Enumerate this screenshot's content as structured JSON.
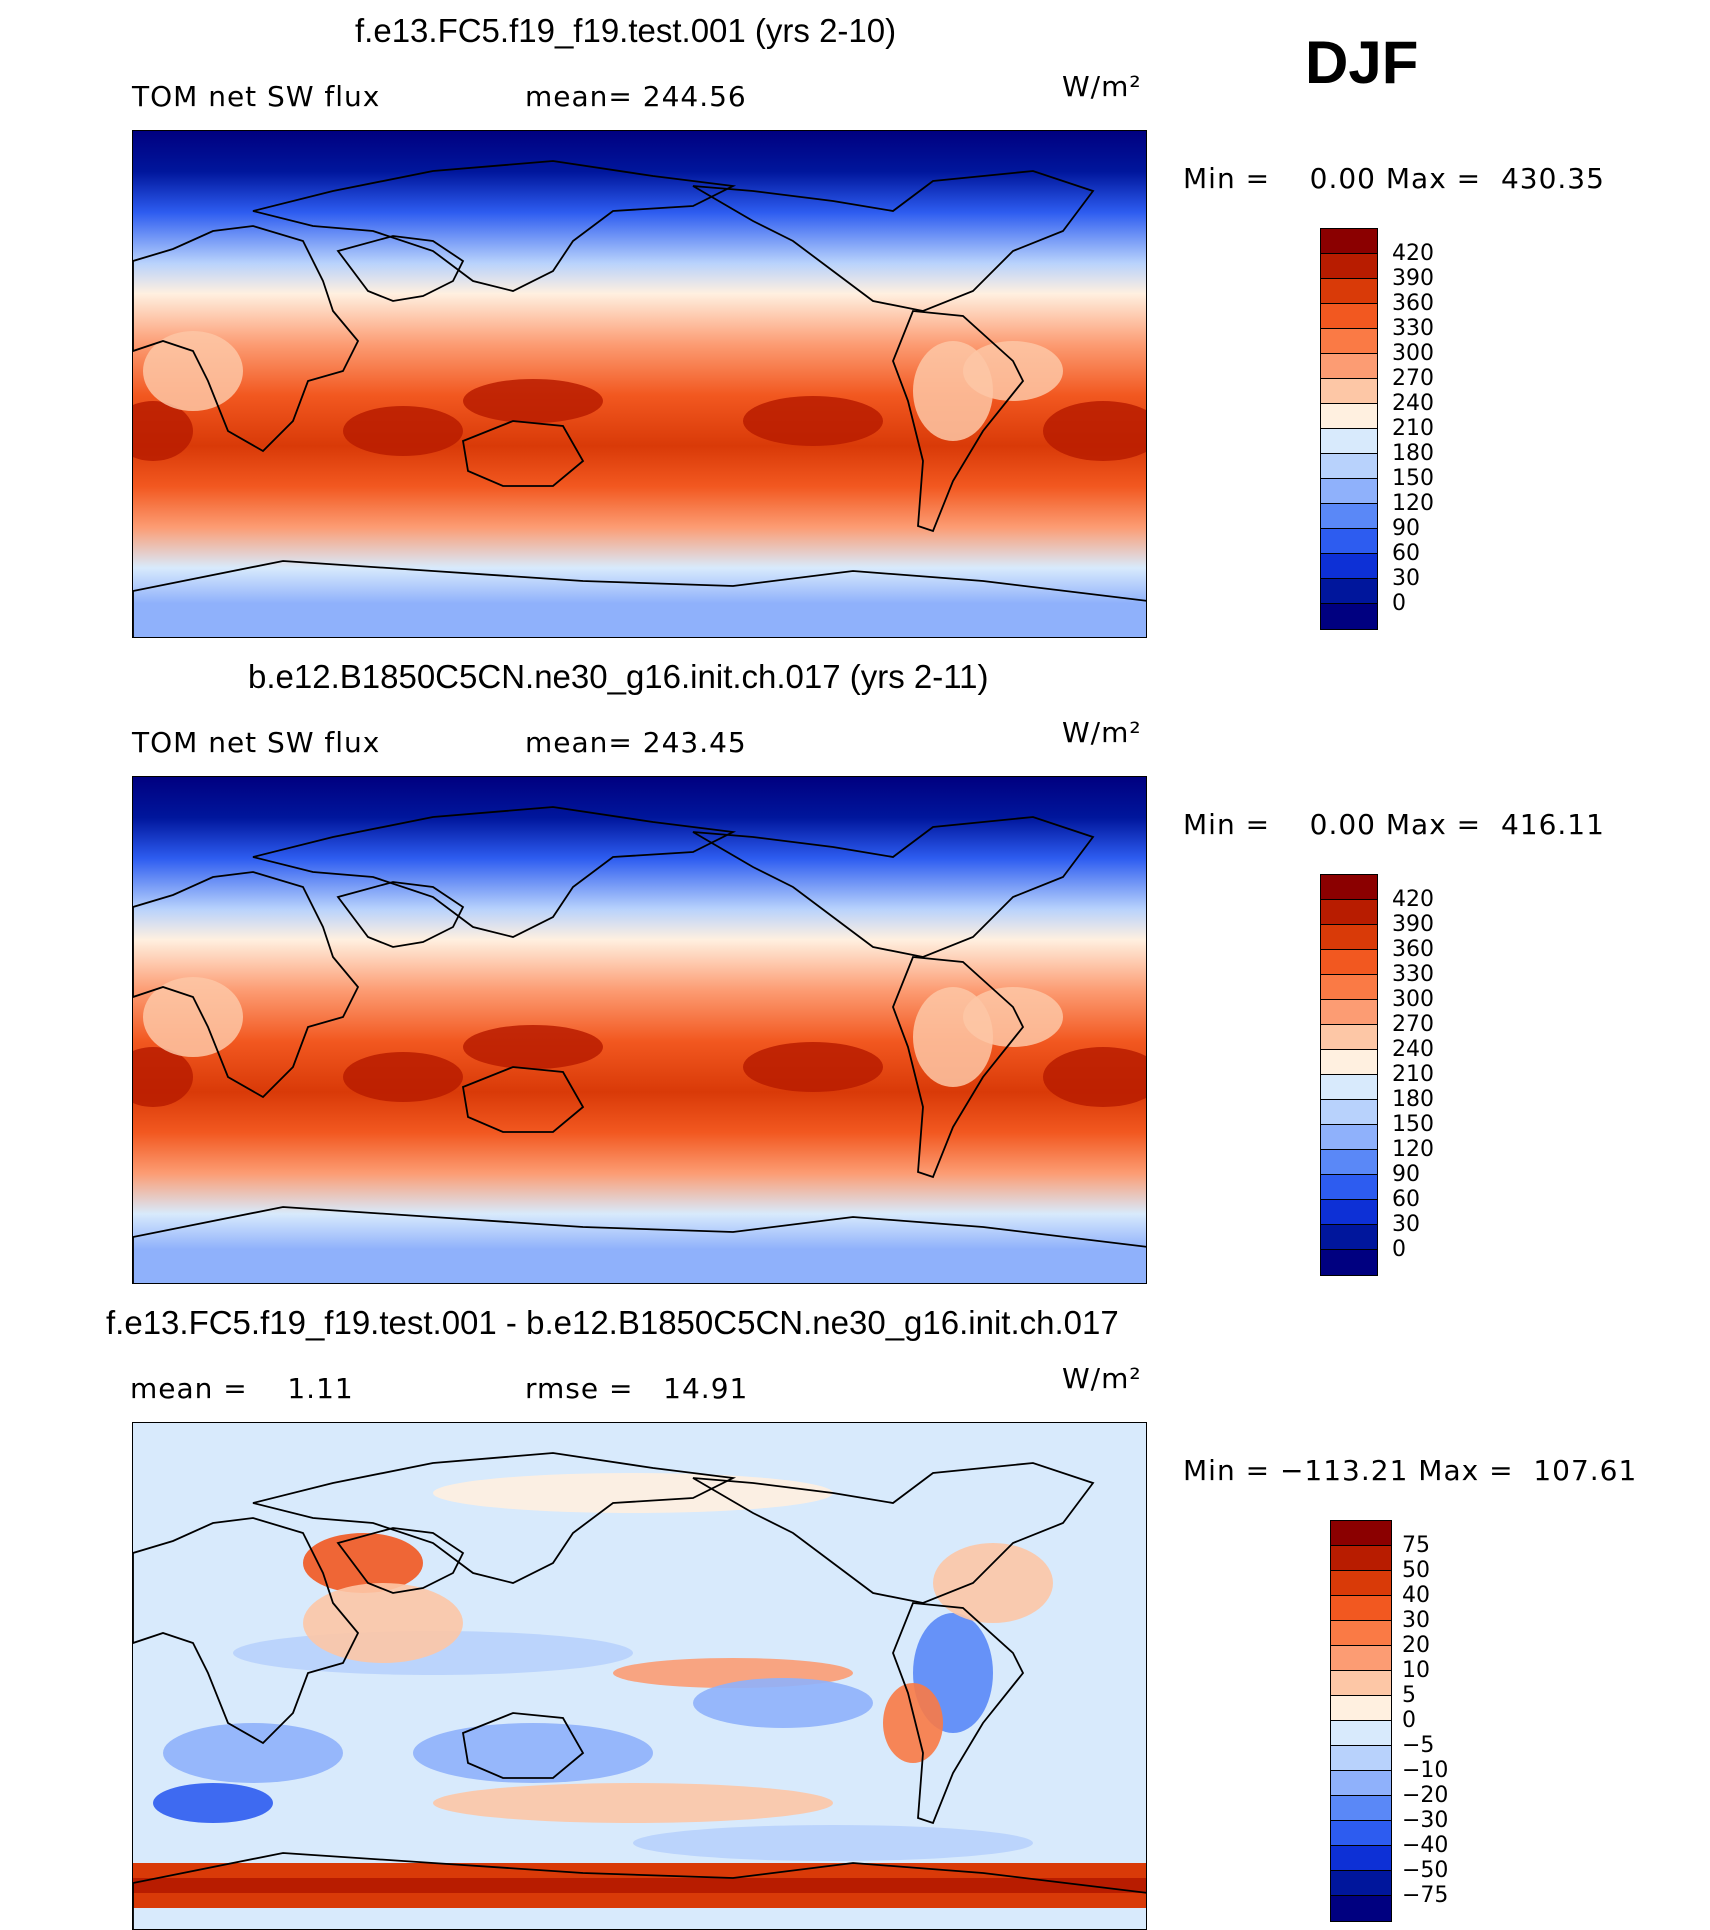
{
  "season": "DJF",
  "panels": [
    {
      "title": "f.e13.FC5.f19_f19.test.001 (yrs 2-10)",
      "left_text": "TOM net SW flux",
      "mid_text": "mean= 244.56",
      "units": "W/m²",
      "range_text": "Min =    0.00 Max =  430.35",
      "map_kind": "absolute",
      "colorbar": {
        "labels": [
          "420",
          "390",
          "360",
          "330",
          "300",
          "270",
          "240",
          "210",
          "180",
          "150",
          "120",
          "90",
          "60",
          "30",
          "0"
        ],
        "colors": [
          "#8b0000",
          "#b81c00",
          "#d93a08",
          "#f25820",
          "#fa7a45",
          "#fc9c73",
          "#fdc7a6",
          "#fff0e0",
          "#d8eafc",
          "#b8d2fc",
          "#8fb1fb",
          "#5a88f7",
          "#2d5cf0",
          "#0d30d6",
          "#00169c",
          "#000080"
        ]
      }
    },
    {
      "title": "b.e12.B1850C5CN.ne30_g16.init.ch.017 (yrs 2-11)",
      "left_text": "TOM net SW flux",
      "mid_text": "mean= 243.45",
      "units": "W/m²",
      "range_text": "Min =    0.00 Max =  416.11",
      "map_kind": "absolute",
      "colorbar": {
        "labels": [
          "420",
          "390",
          "360",
          "330",
          "300",
          "270",
          "240",
          "210",
          "180",
          "150",
          "120",
          "90",
          "60",
          "30",
          "0"
        ],
        "colors": [
          "#8b0000",
          "#b81c00",
          "#d93a08",
          "#f25820",
          "#fa7a45",
          "#fc9c73",
          "#fdc7a6",
          "#fff0e0",
          "#d8eafc",
          "#b8d2fc",
          "#8fb1fb",
          "#5a88f7",
          "#2d5cf0",
          "#0d30d6",
          "#00169c",
          "#000080"
        ]
      }
    },
    {
      "title": "f.e13.FC5.f19_f19.test.001 - b.e12.B1850C5CN.ne30_g16.init.ch.017",
      "left_text": "mean =    1.11",
      "mid_text": "rmse =   14.91",
      "units": "W/m²",
      "range_text": "Min = −113.21 Max =  107.61",
      "map_kind": "difference",
      "colorbar": {
        "labels": [
          "75",
          "50",
          "40",
          "30",
          "20",
          "10",
          "5",
          "0",
          "−5",
          "−10",
          "−20",
          "−30",
          "−40",
          "−50",
          "−75"
        ],
        "colors": [
          "#8b0000",
          "#b81c00",
          "#d93a08",
          "#f25820",
          "#fa7a45",
          "#fc9c73",
          "#fdc7a6",
          "#fff0e0",
          "#d8eafc",
          "#b8d2fc",
          "#8fb1fb",
          "#5a88f7",
          "#2d5cf0",
          "#0d30d6",
          "#00169c",
          "#000080"
        ]
      }
    }
  ]
}
